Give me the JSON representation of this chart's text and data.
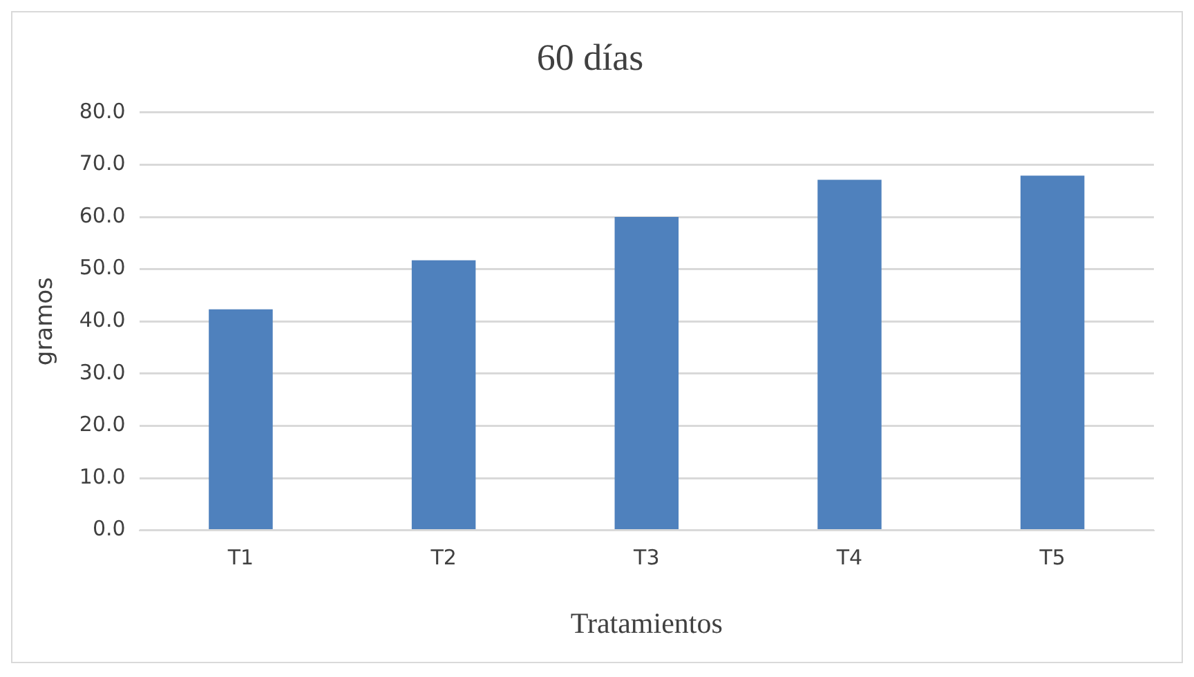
{
  "chart_data": {
    "type": "bar",
    "title": "60 días",
    "xlabel": "Tratamientos",
    "ylabel": "gramos",
    "categories": [
      "T1",
      "T2",
      "T3",
      "T4",
      "T5"
    ],
    "values": [
      42.3,
      51.7,
      60.0,
      67.1,
      67.9
    ],
    "color": "#4f81bd",
    "ylim": [
      0,
      80
    ],
    "yticks": [
      {
        "value": 0,
        "label": "0.0"
      },
      {
        "value": 10,
        "label": "10.0"
      },
      {
        "value": 20,
        "label": "20.0"
      },
      {
        "value": 30,
        "label": "30.0"
      },
      {
        "value": 40,
        "label": "40.0"
      },
      {
        "value": 50,
        "label": "50.0"
      },
      {
        "value": 60,
        "label": "60.0"
      },
      {
        "value": 70,
        "label": "70.0"
      },
      {
        "value": 80,
        "label": "80.0"
      }
    ],
    "grid": "y",
    "legend": false
  }
}
